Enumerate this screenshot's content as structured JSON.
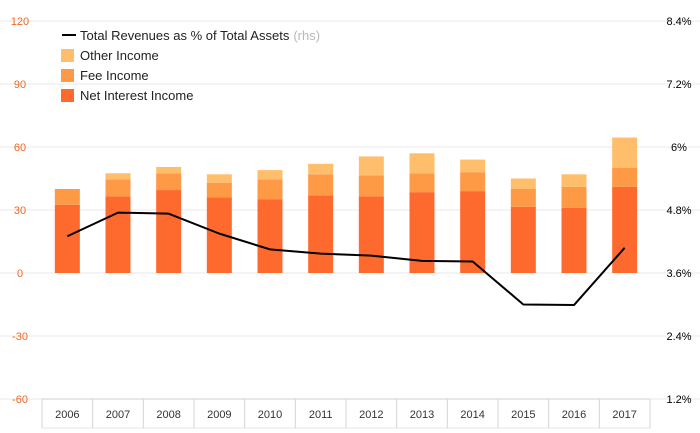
{
  "chart_data": {
    "type": "bar",
    "stacked": true,
    "categories": [
      "2006",
      "2007",
      "2008",
      "2009",
      "2010",
      "2011",
      "2012",
      "2013",
      "2014",
      "2015",
      "2016",
      "2017"
    ],
    "series": [
      {
        "name": "Net Interest Income",
        "color": "#fe6a2d",
        "values": [
          32.5,
          36.5,
          39.5,
          36,
          35,
          37,
          36.5,
          38.5,
          39,
          31.5,
          31,
          41
        ]
      },
      {
        "name": "Fee Income",
        "color": "#fe9945",
        "values": [
          7.5,
          8,
          8,
          7,
          9.5,
          10,
          10,
          9,
          9,
          8.5,
          10,
          9
        ]
      },
      {
        "name": "Other Income",
        "color": "#ffbe6c",
        "values": [
          0,
          3,
          3,
          4,
          4.5,
          5,
          9,
          9.5,
          6,
          5,
          6,
          14.5
        ]
      }
    ],
    "line": {
      "name": "Total Revenues as % of Total Assets",
      "name_suffix": "(rhs)",
      "color": "#000000",
      "axis": "right",
      "values": [
        4.3,
        4.75,
        4.73,
        4.35,
        4.05,
        3.97,
        3.93,
        3.83,
        3.82,
        3.0,
        2.99,
        4.08
      ]
    },
    "y_left": {
      "min": -60,
      "max": 120,
      "ticks": [
        "120",
        "90",
        "60",
        "30",
        "0",
        "-30",
        "-60"
      ],
      "color": "#f26522"
    },
    "y_right": {
      "min": 1.2,
      "max": 8.4,
      "ticks": [
        "8.4%",
        "7.2%",
        "6%",
        "4.8%",
        "3.6%",
        "2.4%",
        "1.2%"
      ],
      "color": "#000000"
    },
    "legend": {
      "placement": "top-left",
      "order": [
        "line",
        "Other Income",
        "Fee Income",
        "Net Interest Income"
      ]
    },
    "grid": true,
    "title": "",
    "xlabel": "",
    "ylabel": ""
  }
}
